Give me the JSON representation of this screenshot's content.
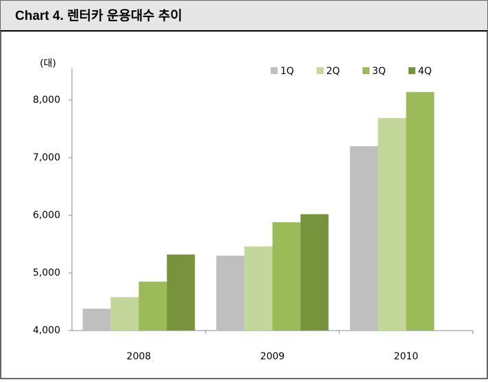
{
  "chart_data": {
    "type": "bar",
    "title": "Chart 4. 렌터카 운용대수 추이",
    "y_unit": "(대)",
    "categories": [
      "2008",
      "2009",
      "2010"
    ],
    "series": [
      {
        "name": "1Q",
        "color": "#bfbfbf",
        "values": [
          4380,
          5300,
          7200
        ]
      },
      {
        "name": "2Q",
        "color": "#c4d79b",
        "values": [
          4580,
          5460,
          7690
        ]
      },
      {
        "name": "3Q",
        "color": "#9bbb59",
        "values": [
          4850,
          5880,
          8140
        ]
      },
      {
        "name": "4Q",
        "color": "#77933c",
        "values": [
          5320,
          6020,
          null
        ]
      }
    ],
    "ylim": [
      4000,
      8500
    ],
    "yticks": [
      {
        "value": 4000,
        "label": "4,000"
      },
      {
        "value": 5000,
        "label": "5,000"
      },
      {
        "value": 6000,
        "label": "6,000"
      },
      {
        "value": 7000,
        "label": "7,000"
      },
      {
        "value": 8000,
        "label": "8,000"
      }
    ],
    "grid": false,
    "legend": "top-right"
  }
}
